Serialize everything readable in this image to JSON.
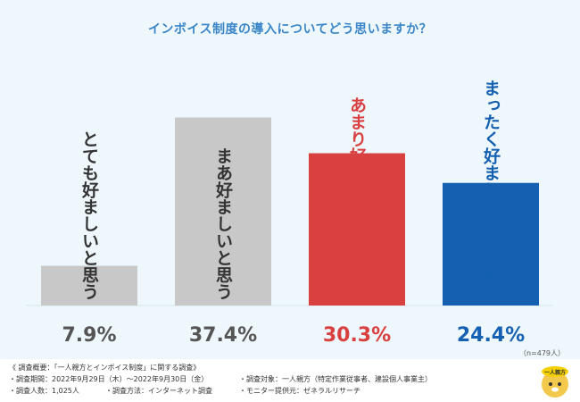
{
  "title": "インボイス制度の導入についてどう思いますか？",
  "sample_size": "（n=479人）",
  "chart_data": {
    "type": "bar",
    "title": "インボイス制度の導入についてどう思いますか？",
    "categories": [
      "とても好ましいと思う",
      "まあ好ましいと思う",
      "あまり好ましくないと思う",
      "まったく好ましくないと思う"
    ],
    "values": [
      7.9,
      37.4,
      30.3,
      24.4
    ],
    "value_labels": [
      "7.9%",
      "37.4%",
      "30.3%",
      "24.4%"
    ],
    "colors": [
      "#c8c8c8",
      "#c8c8c8",
      "#d94040",
      "#1560b0"
    ],
    "label_colors": [
      "#555555",
      "#555555",
      "#d94040",
      "#1560b0"
    ],
    "ylim": [
      0,
      40
    ],
    "xlabel": "",
    "ylabel": ""
  },
  "footer": {
    "survey_name": "《 調査概要：「一人親方とインボイス制度」に関する調査》",
    "period": "・調査期間：2022年9月29日（木）〜2022年9月30日（金）",
    "count": "・調査人数：1,025人",
    "method": "・調査方法：インターネット調査",
    "target": "・調査対象：一人親方（特定作業従事者、建設個人事業主）",
    "provider": "・モニター提供元：ゼネラルリサーチ"
  },
  "logo_text": "一人親方"
}
